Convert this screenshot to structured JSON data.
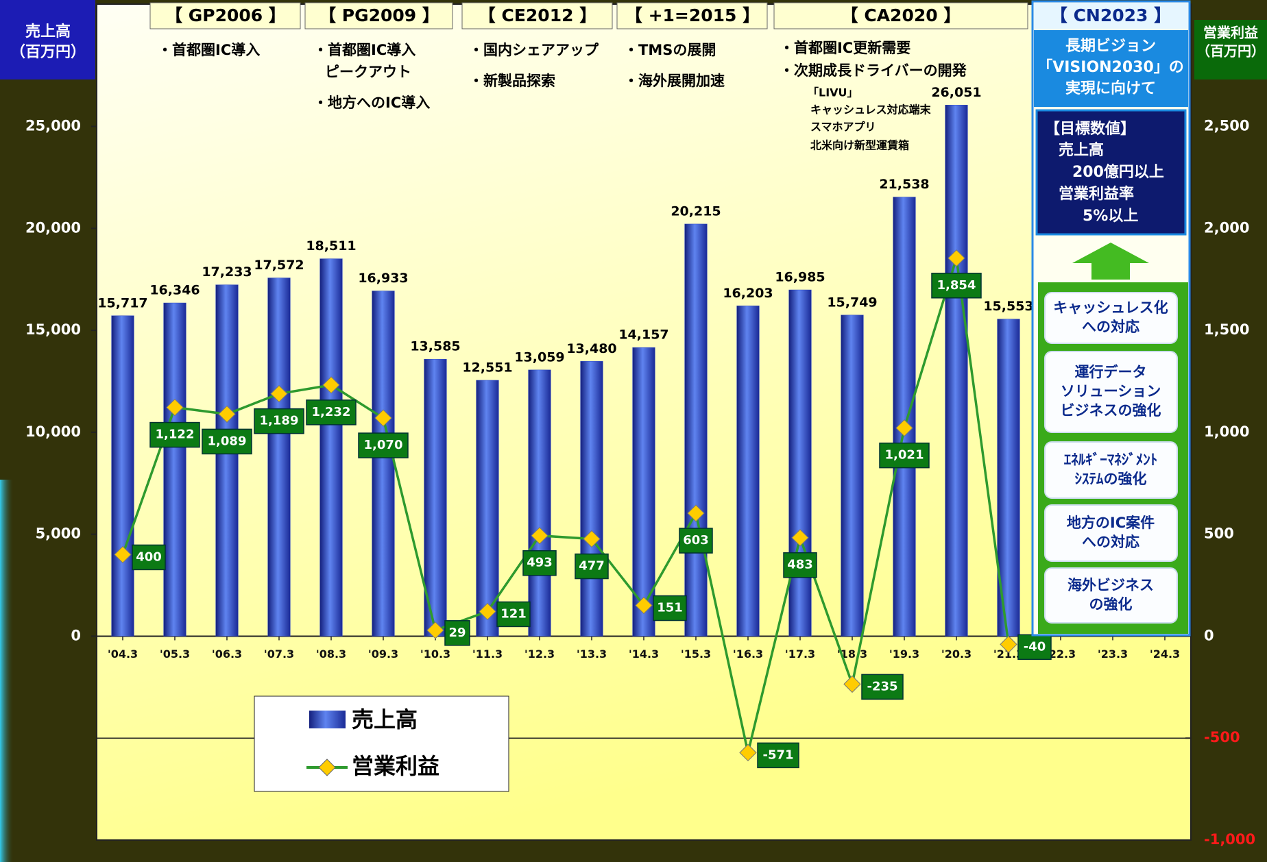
{
  "chart_data": {
    "type": "bar",
    "y_label": [
      "売上高",
      "（百万円）"
    ],
    "y2_label": [
      "営業利益",
      "（百万円）"
    ],
    "categories": [
      "'04.3",
      "'05.3",
      "'06.3",
      "'07.3",
      "'08.3",
      "'09.3",
      "'10.3",
      "'11.3",
      "'12.3",
      "'13.3",
      "'14.3",
      "'15.3",
      "'16.3",
      "'17.3",
      "'18.3",
      "'19.3",
      "'20.3",
      "'21.3",
      "'22.3",
      "'23.3",
      "'24.3"
    ],
    "series": [
      {
        "name": "売上高",
        "type": "bar",
        "color": "#2a44c8",
        "axis": "y",
        "values": [
          15717,
          16346,
          17233,
          17572,
          18511,
          16933,
          13585,
          12551,
          13059,
          13480,
          14157,
          20215,
          16203,
          16985,
          15749,
          21538,
          26051,
          15553,
          null,
          null,
          null
        ],
        "value_labels": [
          "15,717",
          "16,346",
          "17,233",
          "17,572",
          "18,511",
          "16,933",
          "13,585",
          "12,551",
          "13,059",
          "13,480",
          "14,157",
          "20,215",
          "16,203",
          "16,985",
          "15,749",
          "21,538",
          "26,051",
          "15,553",
          null,
          null,
          null
        ]
      },
      {
        "name": "営業利益",
        "type": "line",
        "color": "#2e9a2e",
        "marker_color": "#ffcc00",
        "axis": "y2",
        "values": [
          400,
          1122,
          1089,
          1189,
          1232,
          1070,
          29,
          121,
          493,
          477,
          151,
          603,
          -571,
          483,
          -235,
          1021,
          1854,
          -40,
          null,
          null,
          null
        ],
        "value_labels": [
          "400",
          "1,122",
          "1,089",
          "1,189",
          "1,232",
          "1,070",
          "29",
          "121",
          "493",
          "477",
          "151",
          "603",
          "-571",
          "483",
          "-235",
          "1,021",
          "1,854",
          "-40",
          null,
          null,
          null
        ]
      }
    ],
    "ylim": [
      -10000,
      31000
    ],
    "yticks": [
      0,
      {
        "value": 5000,
        "label": "5,000"
      },
      {
        "value": 10000,
        "label": "10,000"
      },
      {
        "value": 15000,
        "label": "15,000"
      },
      {
        "value": 20000,
        "label": "20,000"
      },
      {
        "value": 25000,
        "label": "25,000"
      }
    ],
    "y2lim": [
      -1000,
      3100
    ],
    "y2ticks": [
      {
        "value": -1000,
        "label": "-1,000"
      },
      -500,
      0,
      500,
      {
        "value": 1000,
        "label": "1,000"
      },
      {
        "value": 1500,
        "label": "1,500"
      },
      {
        "value": 2000,
        "label": "2,000"
      },
      {
        "value": 2500,
        "label": "2,500"
      }
    ],
    "legend": "bottom-left",
    "grid": false
  },
  "phases": [
    {
      "title": "【 GP2006 】",
      "items": [
        "・首都圏IC導入"
      ]
    },
    {
      "title": "【 PG2009 】",
      "items": [
        "・首都圏IC導入",
        "ピークアウト",
        "・地方へのIC導入"
      ]
    },
    {
      "title": "【 CE2012 】",
      "items": [
        "・国内シェアアップ",
        "・新製品探索"
      ]
    },
    {
      "title": "【 +1=2015 】",
      "items": [
        "・TMSの展開",
        "・海外展開加速"
      ]
    },
    {
      "title": "【 CA2020 】",
      "items": [
        "・首都圏IC更新需要",
        "・次期成長ドライバーの開発"
      ],
      "sub_items": [
        "「LIVU」",
        "キャッシュレス対応端末",
        "スマホアプリ",
        "北米向け新型運賃箱"
      ]
    }
  ],
  "vision": {
    "title": "【 CN2023 】",
    "lines": [
      "長期ビジョン",
      "「VISION2030」の",
      "実現に向けて"
    ],
    "targets": [
      "【目標数値】",
      "売上高",
      "200億円以上",
      "営業利益率",
      "5%以上"
    ],
    "boxes": [
      [
        "キャッシュレス化",
        "への対応"
      ],
      [
        "運行データ",
        "ソリューション",
        "ビジネスの強化"
      ],
      [
        "ｴﾈﾙｷﾞｰﾏﾈｼﾞﾒﾝﾄ",
        "ｼｽﾃﾑの強化"
      ],
      [
        "地方のIC案件",
        "への対応"
      ],
      [
        "海外ビジネス",
        "の強化"
      ]
    ]
  }
}
